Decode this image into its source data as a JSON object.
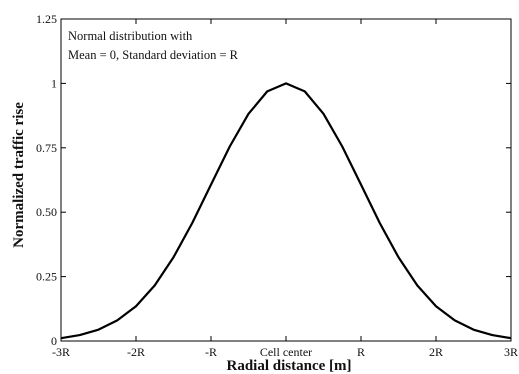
{
  "chart_data": {
    "type": "line",
    "xlabel": "Radial distance [m]",
    "ylabel": "Normalized traffic rise",
    "annotation": {
      "line1": "Normal distribution with",
      "line2": "Mean = 0, Standard deviation = R"
    },
    "x_ticks": [
      {
        "value": -3,
        "label": "-3R"
      },
      {
        "value": -2,
        "label": "-2R"
      },
      {
        "value": -1,
        "label": "-R"
      },
      {
        "value": 0,
        "label": "Cell center"
      },
      {
        "value": 1,
        "label": "R"
      },
      {
        "value": 2,
        "label": "2R"
      },
      {
        "value": 3,
        "label": "3R"
      }
    ],
    "y_ticks": [
      {
        "value": 0,
        "label": "0"
      },
      {
        "value": 0.25,
        "label": "0.25"
      },
      {
        "value": 0.5,
        "label": "0.50"
      },
      {
        "value": 0.75,
        "label": "0.75"
      },
      {
        "value": 1,
        "label": "1"
      },
      {
        "value": 1.25,
        "label": "1.25"
      }
    ],
    "xlim": [
      -3,
      3
    ],
    "ylim": [
      0,
      1.25
    ],
    "grid": false,
    "series": [
      {
        "color": "#000000",
        "x": [
          -3,
          -2.75,
          -2.5,
          -2.25,
          -2,
          -1.75,
          -1.5,
          -1.25,
          -1,
          -0.75,
          -0.5,
          -0.25,
          0,
          0.25,
          0.5,
          0.75,
          1,
          1.25,
          1.5,
          1.75,
          2,
          2.25,
          2.5,
          2.75,
          3
        ],
        "y": [
          0.011,
          0.023,
          0.044,
          0.08,
          0.135,
          0.216,
          0.325,
          0.458,
          0.607,
          0.755,
          0.882,
          0.969,
          1,
          0.969,
          0.882,
          0.755,
          0.607,
          0.458,
          0.325,
          0.216,
          0.135,
          0.08,
          0.044,
          0.023,
          0.011
        ]
      }
    ]
  }
}
